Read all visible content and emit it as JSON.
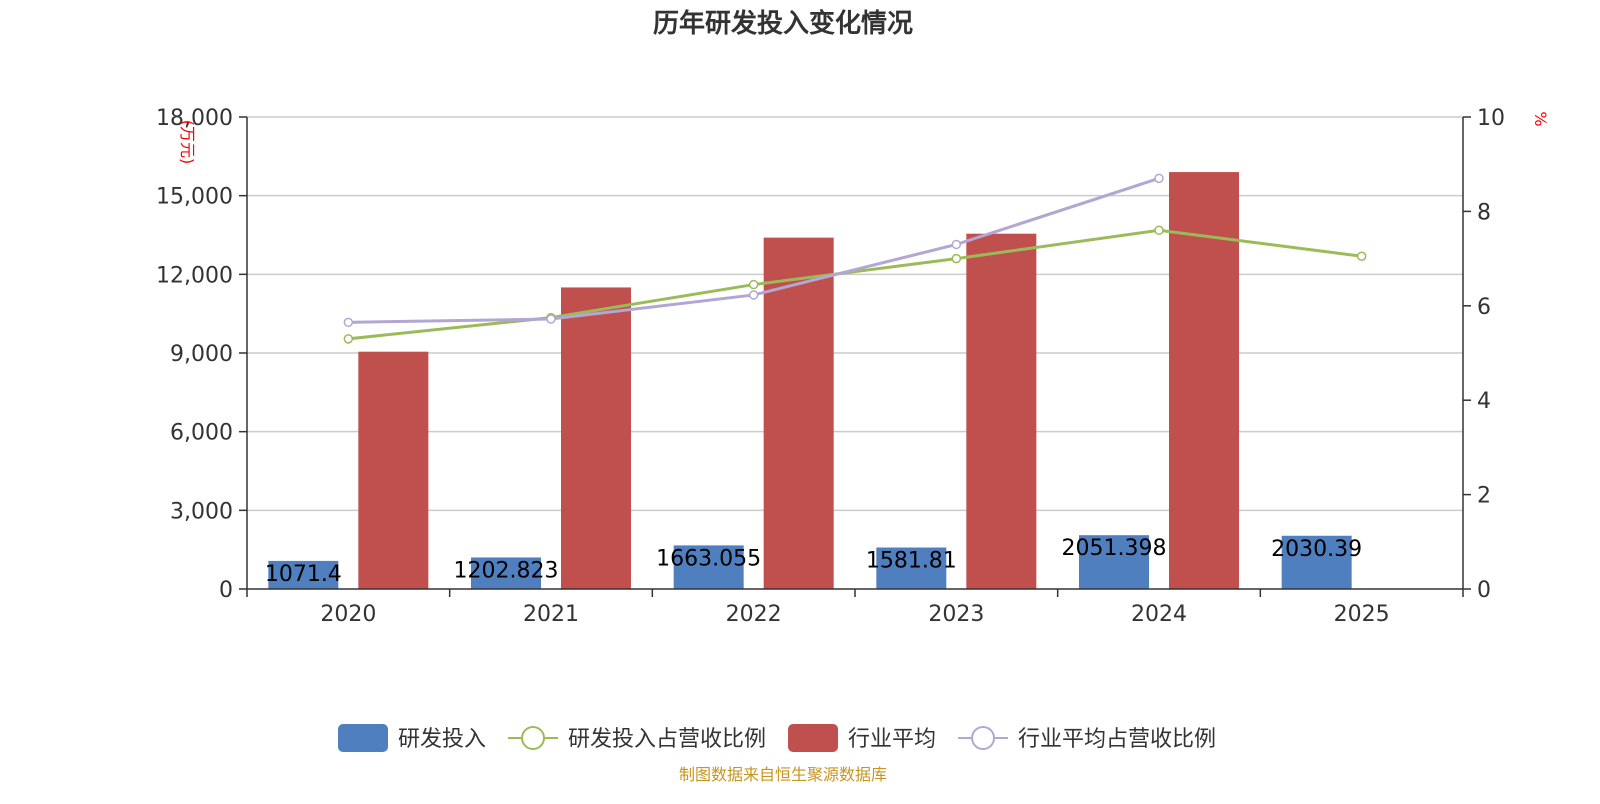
{
  "chart_data": {
    "type": "bar",
    "title": "历年研发投入变化情况",
    "categories": [
      "2020",
      "2021",
      "2022",
      "2023",
      "2024",
      "2025"
    ],
    "left_axis": {
      "unit": "(万元)",
      "ylim": [
        0,
        18000
      ],
      "ticks": [
        0,
        3000,
        6000,
        9000,
        12000,
        15000,
        18000
      ],
      "tick_labels": [
        "0",
        "3,000",
        "6,000",
        "9,000",
        "12,000",
        "15,000",
        "18,000"
      ]
    },
    "right_axis": {
      "unit": "%",
      "ylim": [
        0,
        10
      ],
      "ticks": [
        0,
        2,
        4,
        6,
        8,
        10
      ],
      "tick_labels": [
        "0",
        "2",
        "4",
        "6",
        "8",
        "10"
      ]
    },
    "grid": true,
    "legend_position": "bottom",
    "series": [
      {
        "name": "研发投入",
        "type": "bar",
        "axis": "left",
        "color": "#4f7fbf",
        "values": [
          1071.4,
          1202.823,
          1663.055,
          1581.81,
          2051.398,
          2030.39
        ],
        "labels": [
          "1071.4",
          "1202.823",
          "1663.055",
          "1581.81",
          "2051.398",
          "2030.39"
        ]
      },
      {
        "name": "研发投入占营收比例",
        "type": "line",
        "axis": "right",
        "color": "#9bbb59",
        "values": [
          5.3,
          5.75,
          6.45,
          7.0,
          7.6,
          7.05
        ]
      },
      {
        "name": "行业平均",
        "type": "bar",
        "axis": "left",
        "color": "#c0504d",
        "values": [
          9050,
          11500,
          13400,
          13550,
          15900,
          null
        ]
      },
      {
        "name": "行业平均占营收比例",
        "type": "line",
        "axis": "right",
        "color": "#b3a6d4",
        "values": [
          5.65,
          5.72,
          6.23,
          7.3,
          8.7,
          null
        ]
      }
    ]
  },
  "footer": {
    "source": "制图数据来自恒生聚源数据库"
  }
}
